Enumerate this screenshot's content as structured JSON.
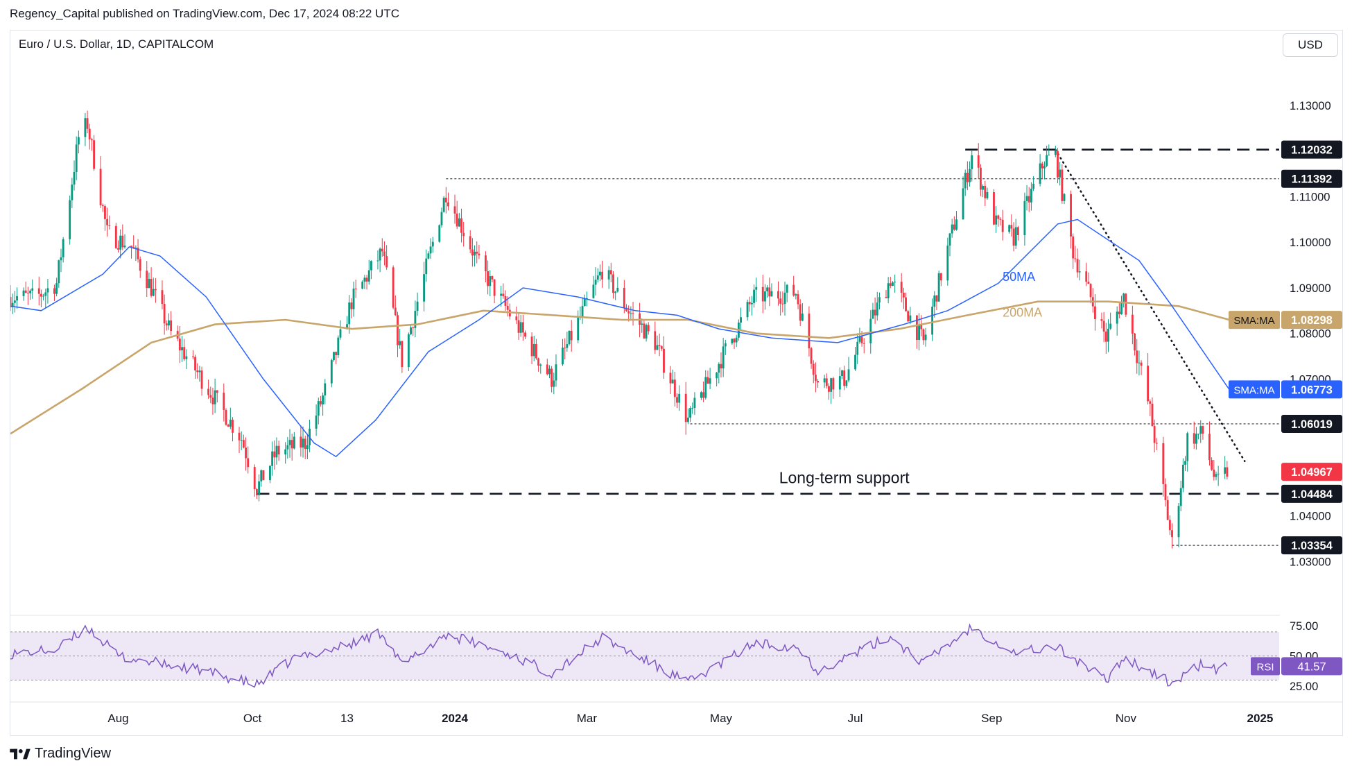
{
  "header": {
    "published_line": "Regency_Capital published on TradingView.com, Dec 17, 2024 08:22 UTC"
  },
  "toolbar": {
    "currency_label": "USD"
  },
  "branding": {
    "logo_text": "TradingView",
    "logo_icon": "tradingview-logo-icon"
  },
  "colors": {
    "up_candle": "#089981",
    "down_candle": "#f23645",
    "ma50": "#2962ff",
    "ma200": "#c8a56a",
    "rsi": "#7e57c2",
    "rsi_band": "#ede7f6",
    "price_tag_dark": "#131722",
    "price_tag_last": "#f23645"
  },
  "chart_data": [
    {
      "type": "candlestick",
      "title": "Euro / U.S. Dollar, 1D, CAPITALCOM",
      "y_ticks": [
        "1.13000",
        "1.11000",
        "1.10000",
        "1.09000",
        "1.08000",
        "1.07000",
        "1.04000",
        "1.03000"
      ],
      "ylim": [
        1.0185,
        1.144
      ],
      "x_ticks": [
        {
          "label": "Aug",
          "date": "2023-08-01"
        },
        {
          "label": "Oct",
          "date": "2023-10-01"
        },
        {
          "label": "13",
          "date": "2023-11-13"
        },
        {
          "label": "2024",
          "date": "2024-01-01"
        },
        {
          "label": "Mar",
          "date": "2024-03-01"
        },
        {
          "label": "May",
          "date": "2024-05-01"
        },
        {
          "label": "Jul",
          "date": "2024-07-01"
        },
        {
          "label": "Sep",
          "date": "2024-09-01"
        },
        {
          "label": "Nov",
          "date": "2024-11-01"
        },
        {
          "label": "2025",
          "date": "2025-01-01"
        }
      ],
      "xlim": [
        "2023-06-13",
        "2025-01-10"
      ],
      "price_path": [
        [
          "2023-06-13",
          1.088
        ],
        [
          "2023-06-25",
          1.088
        ],
        [
          "2023-07-04",
          1.091
        ],
        [
          "2023-07-14",
          1.123
        ],
        [
          "2023-07-18",
          1.126
        ],
        [
          "2023-07-27",
          1.102
        ],
        [
          "2023-08-07",
          1.099
        ],
        [
          "2023-08-16",
          1.09
        ],
        [
          "2023-08-25",
          1.08
        ],
        [
          "2023-09-08",
          1.07
        ],
        [
          "2023-09-26",
          1.057
        ],
        [
          "2023-10-03",
          1.046
        ],
        [
          "2023-10-12",
          1.054
        ],
        [
          "2023-10-25",
          1.056
        ],
        [
          "2023-11-02",
          1.066
        ],
        [
          "2023-11-15",
          1.087
        ],
        [
          "2023-11-29",
          1.098
        ],
        [
          "2023-12-08",
          1.074
        ],
        [
          "2023-12-28",
          1.111
        ],
        [
          "2024-01-12",
          1.095
        ],
        [
          "2024-01-25",
          1.085
        ],
        [
          "2024-02-14",
          1.07
        ],
        [
          "2024-03-08",
          1.094
        ],
        [
          "2024-03-20",
          1.085
        ],
        [
          "2024-04-01",
          1.078
        ],
        [
          "2024-04-16",
          1.061
        ],
        [
          "2024-04-26",
          1.07
        ],
        [
          "2024-05-16",
          1.088
        ],
        [
          "2024-06-04",
          1.089
        ],
        [
          "2024-06-14",
          1.069
        ],
        [
          "2024-06-26",
          1.07
        ],
        [
          "2024-07-17",
          1.092
        ],
        [
          "2024-08-01",
          1.078
        ],
        [
          "2024-08-23",
          1.119
        ],
        [
          "2024-09-03",
          1.104
        ],
        [
          "2024-09-11",
          1.101
        ],
        [
          "2024-09-25",
          1.118
        ],
        [
          "2024-09-30",
          1.119
        ],
        [
          "2024-10-08",
          1.098
        ],
        [
          "2024-10-23",
          1.079
        ],
        [
          "2024-10-31",
          1.088
        ],
        [
          "2024-11-12",
          1.063
        ],
        [
          "2024-11-22",
          1.034
        ],
        [
          "2024-11-29",
          1.057
        ],
        [
          "2024-12-06",
          1.058
        ],
        [
          "2024-12-12",
          1.047
        ],
        [
          "2024-12-17",
          1.0497
        ]
      ],
      "ma50_path": [
        [
          "2023-06-13",
          1.086
        ],
        [
          "2023-06-27",
          1.085
        ],
        [
          "2023-07-25",
          1.093
        ],
        [
          "2023-08-06",
          1.099
        ],
        [
          "2023-08-20",
          1.097
        ],
        [
          "2023-09-10",
          1.088
        ],
        [
          "2023-10-06",
          1.07
        ],
        [
          "2023-10-29",
          1.056
        ],
        [
          "2023-11-08",
          1.053
        ],
        [
          "2023-11-26",
          1.061
        ],
        [
          "2023-12-20",
          1.076
        ],
        [
          "2024-01-12",
          1.083
        ],
        [
          "2024-02-01",
          1.09
        ],
        [
          "2024-02-26",
          1.088
        ],
        [
          "2024-03-23",
          1.085
        ],
        [
          "2024-04-11",
          1.084
        ],
        [
          "2024-04-30",
          1.081
        ],
        [
          "2024-05-24",
          1.079
        ],
        [
          "2024-06-23",
          1.078
        ],
        [
          "2024-07-23",
          1.082
        ],
        [
          "2024-08-12",
          1.085
        ],
        [
          "2024-09-04",
          1.091
        ],
        [
          "2024-10-01",
          1.104
        ],
        [
          "2024-10-10",
          1.105
        ],
        [
          "2024-11-07",
          1.096
        ],
        [
          "2024-11-22",
          1.086
        ],
        [
          "2024-12-18",
          1.0677
        ]
      ],
      "ma200_path": [
        [
          "2023-06-13",
          1.058
        ],
        [
          "2023-07-16",
          1.068
        ],
        [
          "2023-08-16",
          1.078
        ],
        [
          "2023-09-14",
          1.082
        ],
        [
          "2023-10-16",
          1.083
        ],
        [
          "2023-11-15",
          1.081
        ],
        [
          "2023-12-15",
          1.082
        ],
        [
          "2024-01-14",
          1.085
        ],
        [
          "2024-02-15",
          1.084
        ],
        [
          "2024-03-17",
          1.083
        ],
        [
          "2024-04-16",
          1.083
        ],
        [
          "2024-05-17",
          1.08
        ],
        [
          "2024-06-19",
          1.079
        ],
        [
          "2024-07-21",
          1.081
        ],
        [
          "2024-08-21",
          1.084
        ],
        [
          "2024-09-22",
          1.087
        ],
        [
          "2024-10-24",
          1.087
        ],
        [
          "2024-11-25",
          1.086
        ],
        [
          "2024-12-18",
          1.083
        ]
      ],
      "horizontal_levels": [
        {
          "value": 1.12032,
          "label": "1.12032",
          "from": "2024-08-20",
          "style": "dashed"
        },
        {
          "value": 1.11392,
          "label": "1.11392",
          "from": "2023-12-28",
          "style": "dotted"
        },
        {
          "value": 1.06019,
          "label": "1.06019",
          "from": "2024-04-17",
          "style": "dotted"
        },
        {
          "value": 1.04484,
          "label": "1.04484",
          "from": "2023-10-03",
          "style": "dashed"
        },
        {
          "value": 1.03354,
          "label": "1.03354",
          "from": "2024-11-22",
          "style": "dotted"
        }
      ],
      "trendline": {
        "from": [
          "2024-09-30",
          1.1203
        ],
        "to": [
          "2024-12-25",
          1.052
        ],
        "style": "dotted"
      },
      "price_tags": [
        {
          "label": "SMA:MA",
          "value": "1.08298",
          "price": 1.08298,
          "kind": "ma200"
        },
        {
          "label": "SMA:MA",
          "value": "1.06773",
          "price": 1.06773,
          "kind": "ma50"
        },
        {
          "label": "",
          "value": "1.04967",
          "price": 1.04967,
          "kind": "last"
        }
      ],
      "annotations": [
        {
          "text": "50MA",
          "date": "2024-09-06",
          "price": 1.0915,
          "color": "ma50"
        },
        {
          "text": "200MA",
          "date": "2024-09-06",
          "price": 1.0837,
          "color": "ma200"
        },
        {
          "text": "Long-term support",
          "date": "2024-06-26",
          "price": 1.0472,
          "color": "dark"
        }
      ]
    },
    {
      "type": "line",
      "series": [
        {
          "name": "RSI"
        }
      ],
      "y_ticks": [
        "75.00",
        "50.00",
        "25.00"
      ],
      "ylim": [
        13,
        82
      ],
      "band": [
        30,
        70
      ],
      "last": {
        "label": "RSI",
        "value": "41.57",
        "y": 41.57
      },
      "rsi_path": [
        [
          "2023-06-13",
          52
        ],
        [
          "2023-07-04",
          55
        ],
        [
          "2023-07-18",
          74
        ],
        [
          "2023-08-01",
          50
        ],
        [
          "2023-08-16",
          45
        ],
        [
          "2023-09-08",
          38
        ],
        [
          "2023-10-03",
          26
        ],
        [
          "2023-10-20",
          48
        ],
        [
          "2023-11-15",
          60
        ],
        [
          "2023-11-29",
          70
        ],
        [
          "2023-12-08",
          42
        ],
        [
          "2023-12-28",
          68
        ],
        [
          "2024-01-25",
          52
        ],
        [
          "2024-02-14",
          36
        ],
        [
          "2024-03-08",
          65
        ],
        [
          "2024-04-16",
          28
        ],
        [
          "2024-05-16",
          60
        ],
        [
          "2024-06-04",
          58
        ],
        [
          "2024-06-14",
          38
        ],
        [
          "2024-07-17",
          66
        ],
        [
          "2024-08-01",
          44
        ],
        [
          "2024-08-23",
          74
        ],
        [
          "2024-09-11",
          53
        ],
        [
          "2024-09-30",
          58
        ],
        [
          "2024-10-23",
          30
        ],
        [
          "2024-10-31",
          49
        ],
        [
          "2024-11-22",
          27
        ],
        [
          "2024-12-06",
          44
        ],
        [
          "2024-12-12",
          38
        ],
        [
          "2024-12-17",
          41.57
        ]
      ]
    }
  ]
}
